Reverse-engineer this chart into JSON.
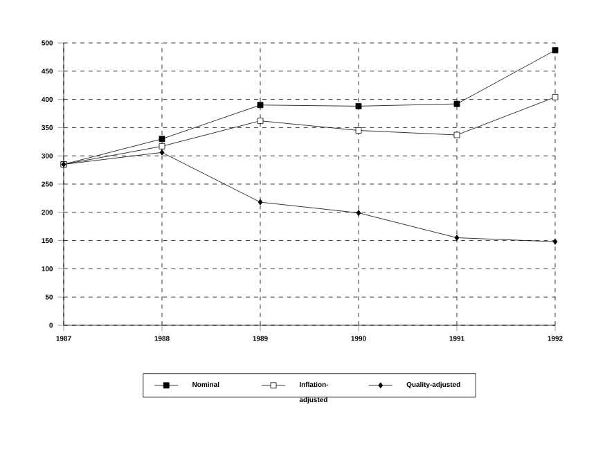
{
  "chart_data": {
    "type": "line",
    "x": [
      1987,
      1988,
      1989,
      1990,
      1991,
      1992
    ],
    "series": [
      {
        "name": "Nominal",
        "color": "#000000",
        "marker": "square",
        "values": [
          285,
          330,
          390,
          388,
          392,
          487
        ]
      },
      {
        "name": "Inflation-adjusted",
        "color": "#000000",
        "marker": "square",
        "values": [
          285,
          317,
          362,
          345,
          337,
          404
        ]
      },
      {
        "name": "Quality-adjusted",
        "color": "#000000",
        "marker": "diamond",
        "values": [
          285,
          306,
          218,
          199,
          155,
          148
        ]
      }
    ],
    "xlim": [
      1987,
      1992
    ],
    "xticks": [
      1987,
      1988,
      1989,
      1990,
      1991,
      1992
    ],
    "ylim": [
      0,
      500
    ],
    "yticks": [
      0,
      50,
      100,
      150,
      200,
      250,
      300,
      350,
      400,
      450,
      500
    ],
    "grid": true,
    "legend": "bottom",
    "line_style": "solid"
  }
}
